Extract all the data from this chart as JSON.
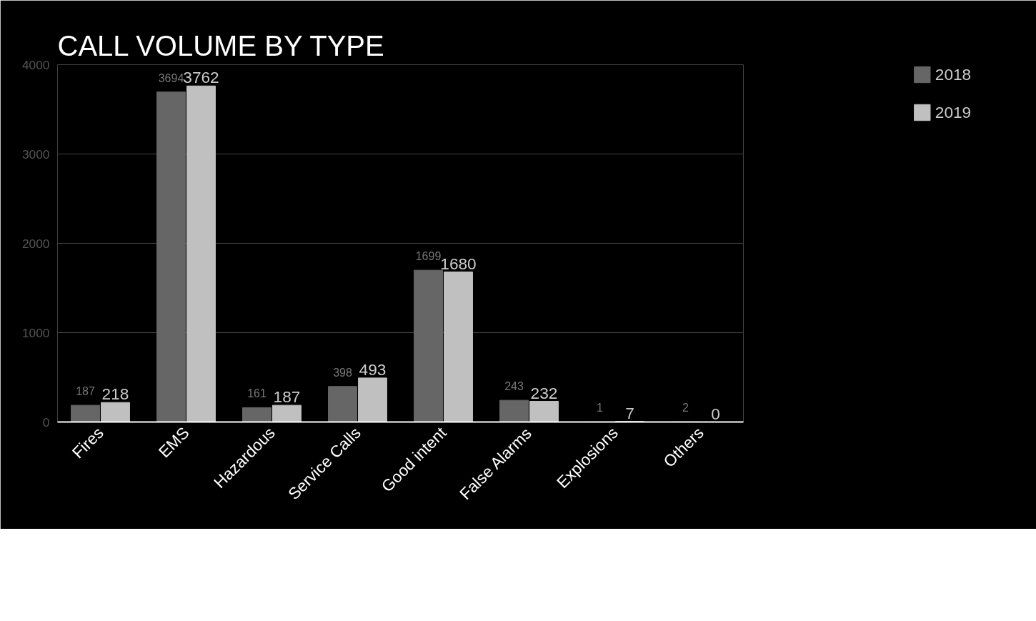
{
  "chart_data": {
    "type": "bar",
    "title": "CALL VOLUME BY TYPE",
    "categories": [
      "Fires",
      "EMS",
      "Hazardous",
      "Service Calls",
      "Good intent",
      "False Alarms",
      "Explosions",
      "Others"
    ],
    "series": [
      {
        "name": "2018",
        "color": "#666666",
        "values": [
          187,
          3694,
          161,
          398,
          1699,
          243,
          1,
          2
        ]
      },
      {
        "name": "2019",
        "color": "#c0c0c0",
        "values": [
          218,
          3762,
          187,
          493,
          1680,
          232,
          7,
          0
        ]
      }
    ],
    "ylim": [
      0,
      4000
    ],
    "yticks": [
      0,
      1000,
      2000,
      3000,
      4000
    ],
    "grid": "y",
    "legend": "top right",
    "data_labels": true
  }
}
